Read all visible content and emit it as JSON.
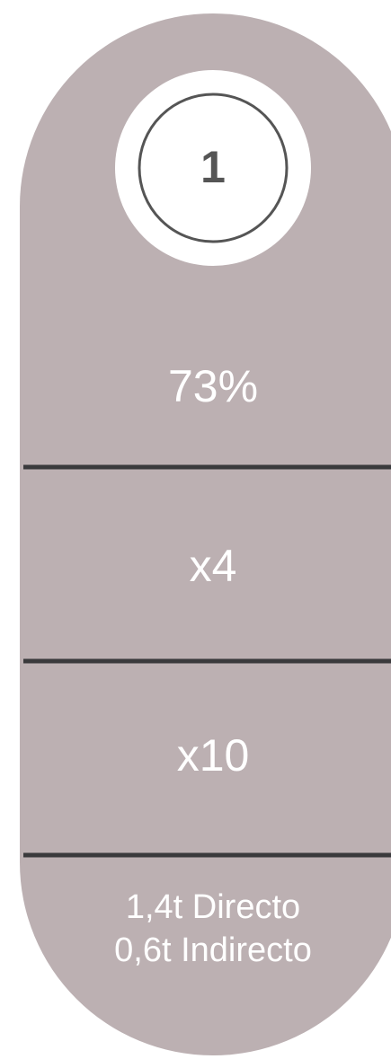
{
  "badge": "1",
  "rows": [
    "73%",
    "x4",
    "x10"
  ],
  "footer": [
    "1,4t Directo",
    "0,6t Indirecto"
  ]
}
